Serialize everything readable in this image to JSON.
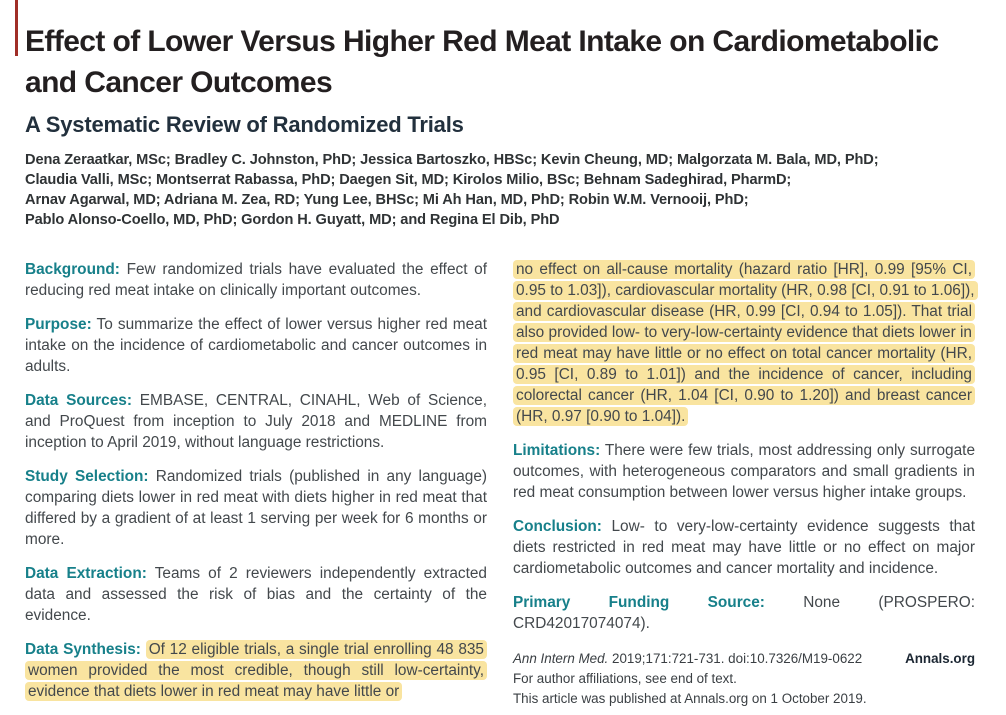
{
  "colors": {
    "section_label_teal": "#17808a",
    "highlight_yellow": "#f9e4a0",
    "subtitle_navy": "#22303d",
    "title_black": "#231f20",
    "red_edge_mark": "#a02e28"
  },
  "header": {
    "title_line1": "Effect of Lower Versus Higher Red Meat Intake on Cardiometabolic",
    "title_line2": "and Cancer Outcomes",
    "subtitle": "A Systematic Review of Randomized Trials",
    "author_lines": [
      "Dena Zeraatkar, MSc; Bradley C. Johnston, PhD; Jessica Bartoszko, HBSc; Kevin Cheung, MD; Malgorzata M. Bala, MD, PhD;",
      "Claudia Valli, MSc; Montserrat Rabassa, PhD; Daegen Sit, MD; Kirolos Milio, BSc; Behnam Sadeghirad, PharmD;",
      "Arnav Agarwal, MD; Adriana M. Zea, RD; Yung Lee, BHSc; Mi Ah Han, MD, PhD; Robin W.M. Vernooij, PhD;",
      "Pablo Alonso-Coello, MD, PhD; Gordon H. Guyatt, MD; and Regina El Dib, PhD"
    ]
  },
  "abstract": {
    "left": [
      {
        "label": "Background:",
        "text": "Few randomized trials have evaluated the effect of reducing red meat intake on clinically important outcomes."
      },
      {
        "label": "Purpose:",
        "text": "To summarize the effect of lower versus higher red meat intake on the incidence of cardiometabolic and cancer outcomes in adults."
      },
      {
        "label": "Data Sources:",
        "text": "EMBASE, CENTRAL, CINAHL, Web of Science, and ProQuest from inception to July 2018 and MEDLINE from inception to April 2019, without language restrictions."
      },
      {
        "label": "Study Selection:",
        "text": "Randomized trials (published in any language) comparing diets lower in red meat with diets higher in red meat that differed by a gradient of at least 1 serving per week for 6 months or more."
      },
      {
        "label": "Data Extraction:",
        "text": "Teams of 2 reviewers independently extracted data and assessed the risk of bias and the certainty of the evidence."
      },
      {
        "label": "Data Synthesis:",
        "highlighted_text": "Of 12 eligible trials, a single trial enrolling 48 835 women provided the most credible, though still low-certainty, evidence that diets lower in red meat may have little or"
      }
    ],
    "right": [
      {
        "highlighted_text": "no effect on all-cause mortality (hazard ratio [HR], 0.99 [95% CI, 0.95 to 1.03]), cardiovascular mortality (HR, 0.98 [CI, 0.91 to 1.06]), and cardiovascular disease (HR, 0.99 [CI, 0.94 to 1.05]). That trial also provided low- to very-low-certainty evidence that diets lower in red meat may have little or no effect on total cancer mortality (HR, 0.95 [CI, 0.89 to 1.01]) and the incidence of cancer, including colorectal cancer (HR, 1.04 [CI, 0.90 to 1.20]) and breast cancer (HR, 0.97 [0.90 to 1.04])."
      },
      {
        "label": "Limitations:",
        "text": "There were few trials, most addressing only surrogate outcomes, with heterogeneous comparators and small gradients in red meat consumption between lower versus higher intake groups."
      },
      {
        "label": "Conclusion:",
        "text": "Low- to very-low-certainty evidence suggests that diets restricted in red meat may have little or no effect on major cardiometabolic outcomes and cancer mortality and incidence."
      },
      {
        "label": "Primary Funding Source:",
        "text": "None (PROSPERO: CRD42017074074)."
      }
    ]
  },
  "footer": {
    "citation_journal": "Ann Intern Med.",
    "citation_rest": "2019;171:721-731. doi:10.7326/M19-0622",
    "site": "Annals.org",
    "affiliations_note": "For author affiliations, see end of text.",
    "published_note": "This article was published at Annals.org on 1 October 2019."
  }
}
